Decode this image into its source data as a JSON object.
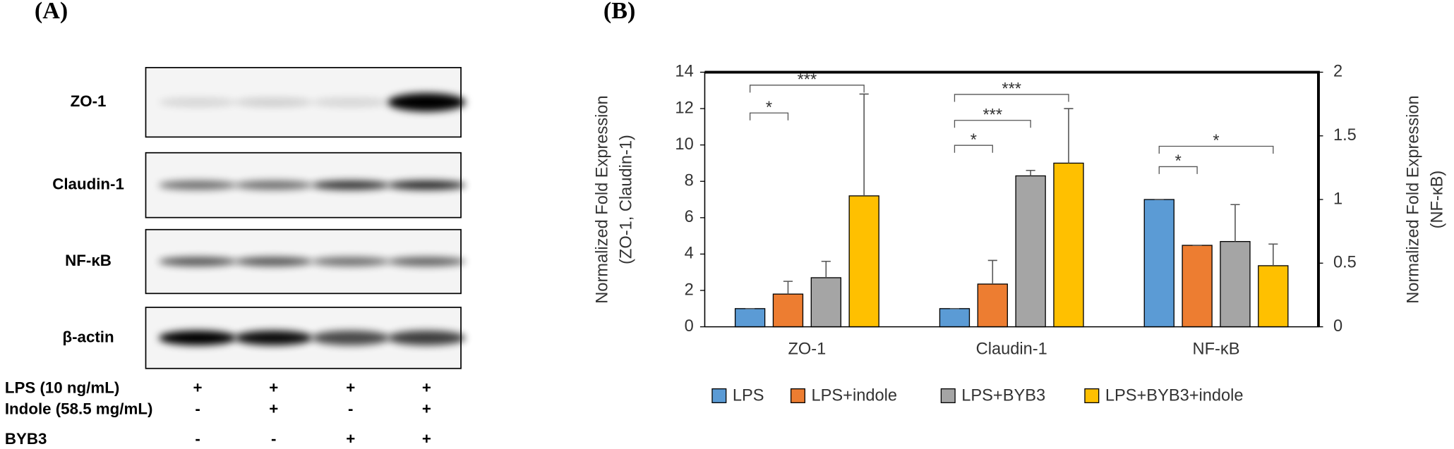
{
  "panel_a": {
    "label": "(A)",
    "blots": [
      "ZO-1",
      "Claudin-1",
      "NF-κB",
      "β-actin"
    ],
    "conditions": [
      {
        "name": "LPS (10 ng/mL)",
        "marks": [
          "+",
          "+",
          "+",
          "+"
        ]
      },
      {
        "name": "Indole (58.5 mg/mL)",
        "marks": [
          "-",
          "+",
          "-",
          "+"
        ]
      },
      {
        "name": "BYB3",
        "marks": [
          "-",
          "-",
          "+",
          "+"
        ]
      }
    ]
  },
  "chart_data": {
    "type": "bar",
    "panel_label": "(B)",
    "categories": [
      "ZO-1",
      "Claudin-1",
      "NF-κB"
    ],
    "axes": [
      "y",
      "y",
      "y2"
    ],
    "series": [
      {
        "name": "LPS",
        "color": "#5b9bd5",
        "values": [
          1.0,
          1.0,
          1.0
        ],
        "errors": [
          0,
          0,
          0
        ]
      },
      {
        "name": "LPS+indole",
        "color": "#ed7d31",
        "values": [
          1.8,
          2.35,
          0.64
        ],
        "errors": [
          0.7,
          1.3,
          0
        ]
      },
      {
        "name": "LPS+BYB3",
        "color": "#a5a5a5",
        "values": [
          2.7,
          8.3,
          0.67
        ],
        "errors": [
          0.9,
          0.3,
          0.29
        ]
      },
      {
        "name": "LPS+BYB3+indole",
        "color": "#ffc000",
        "values": [
          7.2,
          9.0,
          0.48
        ],
        "errors": [
          5.6,
          3.0,
          0.17
        ]
      }
    ],
    "ylim": [
      0,
      14
    ],
    "yticks": [
      0,
      2,
      4,
      6,
      8,
      10,
      12,
      14
    ],
    "y2lim": [
      0,
      2
    ],
    "y2ticks": [
      0,
      0.5,
      1,
      1.5,
      2
    ],
    "ylabel": [
      "Normalized Fold Expression",
      "(ZO-1, Claudin-1)"
    ],
    "y2label": [
      "Normalized Fold Expression",
      "(NF-κB)"
    ],
    "annotations": [
      "*",
      "***",
      "*",
      "***",
      "***",
      "*",
      "*"
    ],
    "legend": "bottom"
  }
}
